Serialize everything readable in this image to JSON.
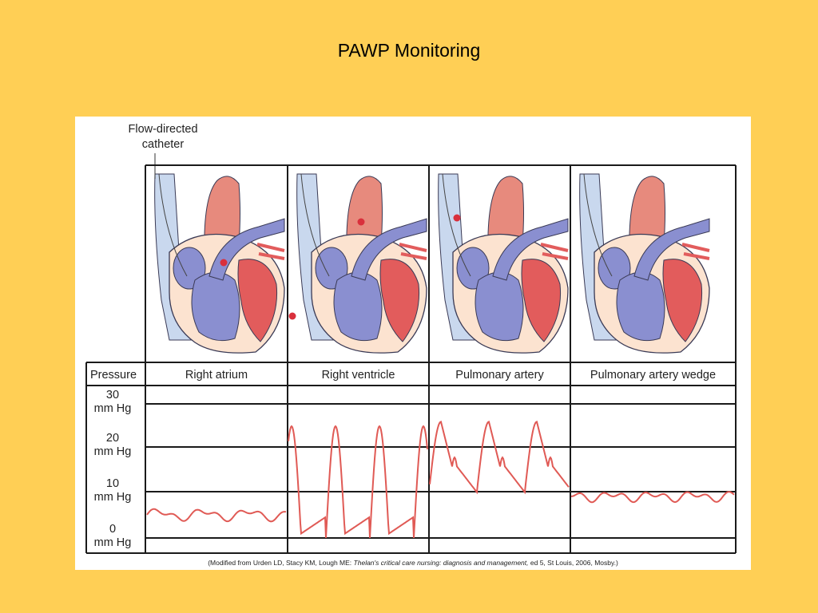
{
  "slide": {
    "title": "PAWP Monitoring"
  },
  "figure": {
    "catheter_label_line1": "Flow-directed",
    "catheter_label_line2": "catheter",
    "pressure_header": "Pressure",
    "columns": [
      "Right atrium",
      "Right ventricle",
      "Pulmonary artery",
      "Pulmonary artery wedge"
    ],
    "y_labels": [
      {
        "value": "30",
        "unit": "mm Hg"
      },
      {
        "value": "20",
        "unit": "mm Hg"
      },
      {
        "value": "10",
        "unit": "mm Hg"
      },
      {
        "value": "0",
        "unit": "mm Hg"
      }
    ],
    "citation_prefix": "(Modified from Urden LD, Stacy KM, Lough ME: ",
    "citation_title": "Thelan's critical care nursing: diagnosis and management,",
    "citation_suffix": " ed 5, St Louis, 2006, Mosby.)",
    "colors": {
      "background": "#FFCF55",
      "vena_cava": "#C9D8EE",
      "aorta": "#E78A7D",
      "right_heart": "#8A8FD0",
      "left_heart": "#E25C5C",
      "myocardium": "#FCE3D0",
      "waveform": "#E05A55",
      "catheter_tip": "#D9303C"
    }
  }
}
